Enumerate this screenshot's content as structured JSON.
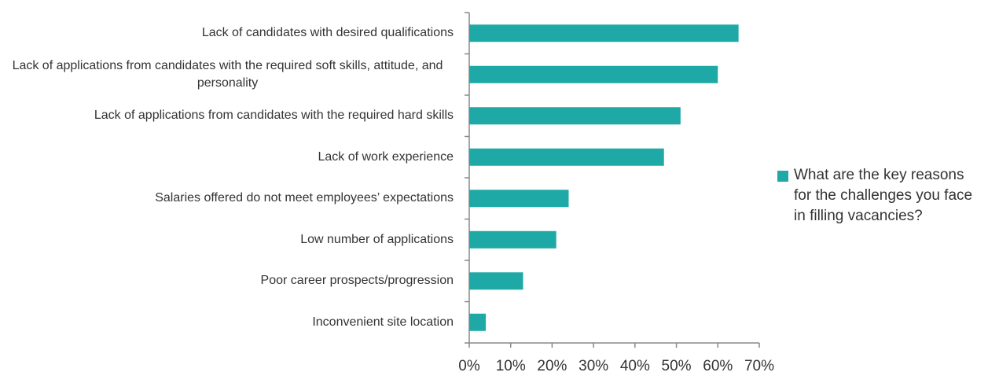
{
  "chart_data": {
    "type": "bar",
    "orientation": "horizontal",
    "categories": [
      "Lack of candidates with desired qualifications",
      "Lack of applications from candidates with the required soft skills, attitude, and personality",
      "Lack of applications from candidates with the required hard skills",
      "Lack of work experience",
      "Salaries offered do not meet employees’ expectations",
      "Low number of applications",
      "Poor career prospects/progression",
      "Inconvenient site location"
    ],
    "series": [
      {
        "name": "What are the key reasons for the challenges you face in filling vacancies?",
        "color": "#1fa9a6",
        "values": [
          65,
          60,
          51,
          47,
          24,
          21,
          13,
          4
        ]
      }
    ],
    "xlim": [
      0,
      70
    ],
    "xticks": [
      {
        "value": 0,
        "label": "0%"
      },
      {
        "value": 10,
        "label": "10%"
      },
      {
        "value": 20,
        "label": "20%"
      },
      {
        "value": 30,
        "label": "30%"
      },
      {
        "value": 40,
        "label": "40%"
      },
      {
        "value": 50,
        "label": "50%"
      },
      {
        "value": 60,
        "label": "60%"
      },
      {
        "value": 70,
        "label": "70%"
      }
    ],
    "legend": "right"
  }
}
